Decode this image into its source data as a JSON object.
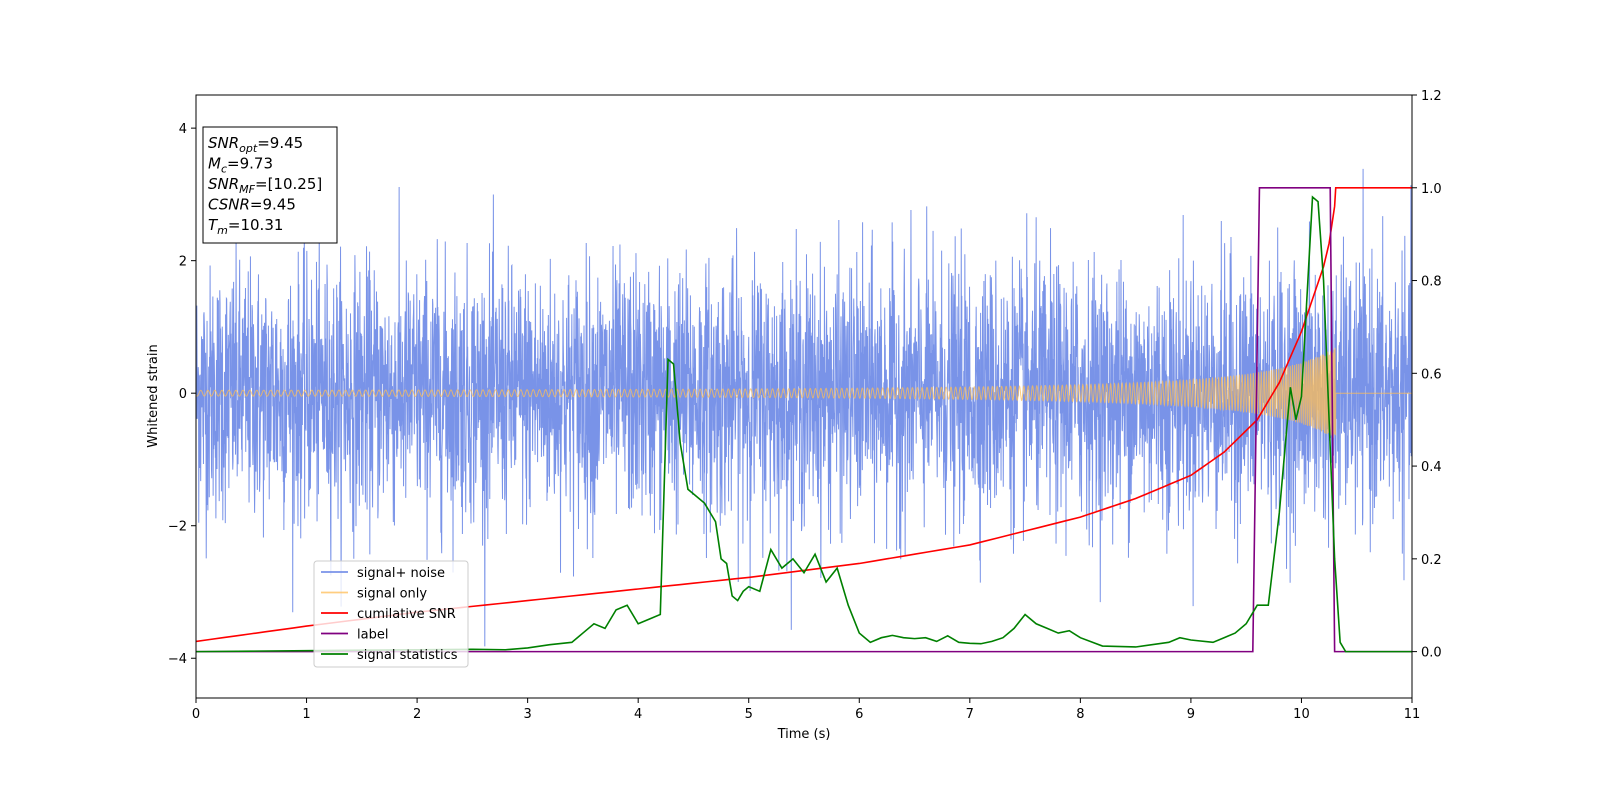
{
  "chart_data": {
    "type": "line",
    "xlabel": "Time (s)",
    "ylabel_left": "Whitened strain",
    "ylabel_right": "",
    "xlim": [
      0,
      11
    ],
    "ylim_left": [
      -4.6,
      4.5
    ],
    "ylim_right": [
      -0.1,
      1.2
    ],
    "xticks": [
      "0",
      "1",
      "2",
      "3",
      "4",
      "5",
      "6",
      "7",
      "8",
      "9",
      "10",
      "11"
    ],
    "yticks_left": [
      "−4",
      "−2",
      "0",
      "2",
      "4"
    ],
    "yticks_right": [
      "0.0",
      "0.2",
      "0.4",
      "0.6",
      "0.8",
      "1.0",
      "1.2"
    ],
    "grid": false,
    "legend_position": "lower-left",
    "colors": {
      "signal_noise": "#6a87e6",
      "signal_only": "#ffbe55",
      "cumulative_snr": "#ff0000",
      "label": "#800080",
      "signal_statistics": "#008000"
    },
    "info_box": [
      {
        "base": "SNR",
        "sub": "opt",
        "rest": "=9.45"
      },
      {
        "base": "M",
        "sub": "c",
        "rest": "=9.73"
      },
      {
        "base": "SNR",
        "sub": "MF",
        "rest": "=[10.25]"
      },
      {
        "base": "CSNR",
        "sub": "",
        "rest": "=9.45"
      },
      {
        "base": "T",
        "sub": "m",
        "rest": "=10.31"
      }
    ],
    "series": [
      {
        "name": "signal+ noise",
        "axis": "left",
        "kind": "noise",
        "std": 0.95,
        "min": -4.1,
        "max": 3.75,
        "xrange": [
          0,
          11
        ]
      },
      {
        "name": "signal only",
        "axis": "left",
        "kind": "chirp",
        "amplitude_start": 0.03,
        "amplitude_end": 0.7,
        "t_merge": 10.31
      },
      {
        "name": "cumilative SNR",
        "axis": "right",
        "x": [
          0,
          1,
          2,
          3,
          4,
          5,
          6,
          7,
          8,
          8.5,
          9,
          9.3,
          9.6,
          9.8,
          10.0,
          10.1,
          10.2,
          10.25,
          10.3,
          10.31,
          11
        ],
        "y": [
          0.022,
          0.055,
          0.085,
          0.11,
          0.135,
          0.16,
          0.19,
          0.23,
          0.29,
          0.33,
          0.38,
          0.43,
          0.5,
          0.58,
          0.69,
          0.76,
          0.83,
          0.88,
          0.96,
          1.0,
          1.0
        ]
      },
      {
        "name": "label",
        "axis": "right",
        "x": [
          0,
          9.56,
          9.62,
          10.26,
          10.3,
          11
        ],
        "y": [
          0,
          0,
          1,
          1,
          0,
          0
        ]
      },
      {
        "name": "signal statistics",
        "axis": "right",
        "x": [
          0,
          0.5,
          1,
          1.5,
          2,
          2.5,
          2.8,
          3.0,
          3.2,
          3.4,
          3.5,
          3.6,
          3.7,
          3.8,
          3.9,
          4.0,
          4.1,
          4.2,
          4.27,
          4.32,
          4.38,
          4.45,
          4.5,
          4.6,
          4.7,
          4.75,
          4.8,
          4.85,
          4.9,
          4.95,
          5.0,
          5.1,
          5.2,
          5.3,
          5.4,
          5.5,
          5.6,
          5.7,
          5.8,
          5.9,
          6.0,
          6.1,
          6.2,
          6.3,
          6.4,
          6.5,
          6.6,
          6.7,
          6.8,
          6.9,
          7.0,
          7.1,
          7.2,
          7.3,
          7.4,
          7.5,
          7.6,
          7.7,
          7.8,
          7.9,
          8.0,
          8.2,
          8.5,
          8.8,
          8.9,
          9.0,
          9.2,
          9.3,
          9.4,
          9.5,
          9.6,
          9.7,
          9.8,
          9.9,
          9.95,
          10.0,
          10.1,
          10.15,
          10.2,
          10.3,
          10.35,
          10.4,
          10.5,
          11
        ],
        "y": [
          0.0,
          0.001,
          0.002,
          0.003,
          0.004,
          0.005,
          0.004,
          0.008,
          0.015,
          0.02,
          0.04,
          0.06,
          0.05,
          0.09,
          0.1,
          0.06,
          0.07,
          0.08,
          0.63,
          0.62,
          0.45,
          0.35,
          0.34,
          0.32,
          0.28,
          0.2,
          0.19,
          0.12,
          0.11,
          0.13,
          0.14,
          0.13,
          0.22,
          0.18,
          0.2,
          0.17,
          0.21,
          0.15,
          0.18,
          0.1,
          0.04,
          0.02,
          0.03,
          0.035,
          0.03,
          0.028,
          0.03,
          0.022,
          0.034,
          0.02,
          0.018,
          0.017,
          0.022,
          0.03,
          0.05,
          0.08,
          0.06,
          0.05,
          0.04,
          0.045,
          0.03,
          0.012,
          0.01,
          0.02,
          0.03,
          0.025,
          0.02,
          0.03,
          0.04,
          0.06,
          0.1,
          0.1,
          0.3,
          0.57,
          0.5,
          0.55,
          0.98,
          0.97,
          0.8,
          0.2,
          0.02,
          0.0,
          0.0,
          0.0
        ]
      }
    ]
  }
}
